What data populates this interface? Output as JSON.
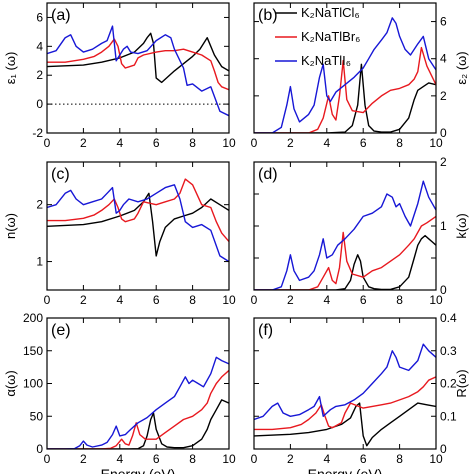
{
  "series_legend": [
    {
      "name": "K₂NaTlCl₆",
      "color": "#000000"
    },
    {
      "name": "K₂NaTlBr₆",
      "color": "#e8191f"
    },
    {
      "name": "K₂NaTlI₆",
      "color": "#1717d6"
    }
  ],
  "chart_data": [
    {
      "type": "line",
      "panel_label": "(a)",
      "ylabel": "ε₁ (ω)",
      "ylabel_side": "left",
      "xlim": [
        0,
        10
      ],
      "ylim": [
        -2,
        7
      ],
      "yticks": [
        -2,
        0,
        2,
        4,
        6
      ],
      "xticks": [
        0,
        2,
        4,
        6,
        8,
        10
      ],
      "xlabel": "",
      "zero_line": "dotted",
      "series": [
        {
          "color": "#000000",
          "x": [
            0,
            2,
            3,
            4,
            4.8,
            5.3,
            5.5,
            5.7,
            5.85,
            6,
            6.3,
            7,
            7.5,
            8,
            8.4,
            8.8,
            9.2,
            9.6,
            10
          ],
          "y": [
            2.6,
            2.7,
            2.9,
            3.2,
            3.6,
            4.2,
            4.6,
            4.9,
            4.2,
            1.8,
            1.5,
            2.3,
            2.8,
            3.3,
            3.8,
            4.6,
            3.4,
            2.6,
            2.3
          ]
        },
        {
          "color": "#e8191f",
          "x": [
            0,
            1,
            2,
            2.6,
            3,
            3.4,
            3.7,
            3.9,
            4.1,
            4.3,
            4.8,
            5,
            5.3,
            6,
            6.5,
            7,
            7.5,
            8,
            8.5,
            9,
            9.2,
            9.4,
            9.6,
            10
          ],
          "y": [
            2.9,
            2.9,
            3.1,
            3.3,
            3.6,
            4.0,
            4.5,
            4.0,
            2.8,
            2.5,
            2.7,
            3.2,
            3.4,
            3.6,
            3.7,
            3.7,
            3.8,
            3.6,
            3.4,
            3.0,
            2.3,
            1.5,
            1.2,
            1.0
          ]
        },
        {
          "color": "#1717d6",
          "x": [
            0,
            0.5,
            1,
            1.3,
            1.6,
            2,
            2.5,
            3,
            3.3,
            3.6,
            3.8,
            4,
            4.2,
            4.4,
            4.6,
            5,
            5.5,
            6,
            6.5,
            6.8,
            7,
            7.5,
            7.7,
            8,
            8.5,
            9,
            9.5,
            10
          ],
          "y": [
            3.5,
            3.7,
            4.6,
            4.8,
            4.0,
            3.6,
            3.8,
            4.2,
            4.4,
            5.4,
            3.0,
            3.4,
            3.8,
            4.0,
            3.6,
            3.5,
            3.7,
            4.4,
            4.8,
            4.6,
            3.8,
            2.5,
            1.3,
            1.4,
            0.9,
            1.2,
            -0.5,
            -0.8
          ]
        }
      ]
    },
    {
      "type": "line",
      "panel_label": "(b)",
      "ylabel": "ε₂ (ω)",
      "ylabel_side": "right",
      "xlim": [
        0,
        10
      ],
      "ylim": [
        0,
        7
      ],
      "yticks": [
        0,
        2,
        4,
        6
      ],
      "xticks": [
        0,
        2,
        4,
        6,
        8,
        10
      ],
      "xlabel": "",
      "series": [
        {
          "color": "#000000",
          "x": [
            0,
            4,
            5,
            5.4,
            5.7,
            5.9,
            6.1,
            6.3,
            6.6,
            7,
            7.5,
            8,
            8.5,
            8.8,
            9,
            9.3,
            9.6,
            10
          ],
          "y": [
            0,
            0,
            0.05,
            0.4,
            1.5,
            3.7,
            1.5,
            0.4,
            0.1,
            0.05,
            0.05,
            0.2,
            0.8,
            1.8,
            2.3,
            2.5,
            2.7,
            2.6
          ]
        },
        {
          "color": "#e8191f",
          "x": [
            0,
            3,
            3.5,
            3.8,
            4.1,
            4.3,
            4.5,
            4.7,
            4.9,
            5.1,
            5.4,
            6,
            6.5,
            7,
            7.5,
            8,
            8.5,
            8.8,
            9,
            9.2,
            9.5,
            10
          ],
          "y": [
            0,
            0,
            0.2,
            0.8,
            2.0,
            1.0,
            0.7,
            2.0,
            3.9,
            1.8,
            1.2,
            1.1,
            1.6,
            2.0,
            2.3,
            2.4,
            2.6,
            2.9,
            3.3,
            4.6,
            3.6,
            2.6
          ]
        },
        {
          "color": "#1717d6",
          "x": [
            0,
            1,
            1.5,
            1.8,
            2,
            2.2,
            2.5,
            3,
            3.3,
            3.6,
            3.8,
            4,
            4.2,
            4.5,
            5,
            5.5,
            6,
            6.3,
            6.6,
            7,
            7.3,
            7.6,
            7.8,
            8,
            8.3,
            8.6,
            9,
            9.3,
            9.6,
            10
          ],
          "y": [
            0,
            0,
            0.3,
            1.5,
            2.5,
            1.3,
            0.6,
            1.0,
            1.5,
            3.0,
            3.7,
            2.0,
            1.7,
            2.2,
            2.6,
            3.0,
            3.5,
            4.0,
            4.5,
            5.0,
            5.4,
            6.2,
            5.9,
            5.2,
            4.5,
            4.2,
            4.8,
            5.2,
            4.0,
            3.4
          ]
        }
      ]
    },
    {
      "type": "line",
      "panel_label": "(c)",
      "ylabel": "n(ω)",
      "ylabel_side": "left",
      "xlim": [
        0,
        10
      ],
      "ylim": [
        0.5,
        2.75
      ],
      "yticks": [
        1,
        2
      ],
      "xticks": [
        0,
        2,
        4,
        6,
        8,
        10
      ],
      "xlabel": "",
      "series": [
        {
          "color": "#000000",
          "x": [
            0,
            2,
            3,
            4,
            4.8,
            5.3,
            5.6,
            5.8,
            6,
            6.2,
            6.5,
            7,
            7.5,
            8,
            8.5,
            9,
            9.5,
            10
          ],
          "y": [
            1.62,
            1.65,
            1.7,
            1.8,
            1.9,
            2.05,
            2.2,
            1.7,
            1.1,
            1.35,
            1.6,
            1.75,
            1.8,
            1.85,
            1.95,
            2.1,
            2.0,
            1.9
          ]
        },
        {
          "color": "#e8191f",
          "x": [
            0,
            1,
            2,
            2.6,
            3,
            3.4,
            3.7,
            3.9,
            4.1,
            4.3,
            4.8,
            5,
            5.3,
            6,
            6.5,
            7,
            7.3,
            7.6,
            8,
            8.5,
            9,
            9.3,
            9.6,
            10
          ],
          "y": [
            1.72,
            1.72,
            1.76,
            1.82,
            1.9,
            2.0,
            2.1,
            1.95,
            1.75,
            1.7,
            1.75,
            1.85,
            2.05,
            2.0,
            2.05,
            2.1,
            2.2,
            2.45,
            2.35,
            2.0,
            1.95,
            1.7,
            1.5,
            1.35
          ]
        },
        {
          "color": "#1717d6",
          "x": [
            0,
            0.5,
            1,
            1.3,
            1.6,
            2,
            2.5,
            3,
            3.3,
            3.6,
            3.8,
            4,
            4.2,
            4.5,
            5,
            5.5,
            6,
            6.5,
            7,
            7.3,
            7.6,
            8,
            8.5,
            9,
            9.5,
            10
          ],
          "y": [
            1.95,
            2.0,
            2.2,
            2.25,
            2.1,
            2.0,
            2.05,
            2.1,
            2.2,
            2.3,
            1.85,
            1.9,
            2.0,
            2.1,
            2.05,
            2.1,
            2.2,
            2.3,
            2.35,
            2.1,
            1.7,
            1.6,
            1.65,
            1.55,
            1.1,
            1.0
          ]
        }
      ]
    },
    {
      "type": "line",
      "panel_label": "(d)",
      "ylabel": "k(ω)",
      "ylabel_side": "right",
      "xlim": [
        0,
        10
      ],
      "ylim": [
        0,
        2
      ],
      "yticks": [
        0,
        0.5,
        1,
        1.5,
        2
      ],
      "ytick_labels": [
        "0",
        "",
        "1",
        "",
        "2"
      ],
      "xticks": [
        0,
        2,
        4,
        6,
        8,
        10
      ],
      "xlabel": "",
      "series": [
        {
          "color": "#000000",
          "x": [
            0,
            4.5,
            5,
            5.3,
            5.5,
            5.7,
            5.85,
            6,
            6.3,
            6.6,
            7,
            7.5,
            8,
            8.5,
            8.8,
            9,
            9.2,
            9.4,
            9.6,
            9.8,
            10
          ],
          "y": [
            0,
            0,
            0.02,
            0.15,
            0.4,
            0.55,
            0.45,
            0.2,
            0.05,
            0.02,
            0.01,
            0.01,
            0.05,
            0.2,
            0.5,
            0.7,
            0.8,
            0.85,
            0.8,
            0.75,
            0.7
          ]
        },
        {
          "color": "#e8191f",
          "x": [
            0,
            3,
            3.5,
            3.8,
            4.1,
            4.3,
            4.5,
            4.7,
            4.9,
            5.1,
            5.4,
            6,
            6.5,
            7,
            7.5,
            8,
            8.5,
            8.8,
            9,
            9.2,
            9.5,
            10
          ],
          "y": [
            0,
            0,
            0.05,
            0.2,
            0.35,
            0.15,
            0.1,
            0.35,
            0.9,
            0.45,
            0.25,
            0.2,
            0.3,
            0.35,
            0.45,
            0.55,
            0.7,
            0.8,
            0.9,
            1.0,
            1.05,
            1.15
          ]
        },
        {
          "color": "#1717d6",
          "x": [
            0,
            1,
            1.5,
            1.8,
            2,
            2.2,
            2.5,
            3,
            3.3,
            3.6,
            3.8,
            4,
            4.3,
            4.6,
            5,
            5.5,
            6,
            6.5,
            7,
            7.3,
            7.6,
            7.8,
            8,
            8.3,
            8.6,
            9,
            9.3,
            9.6,
            10
          ],
          "y": [
            0,
            0,
            0.05,
            0.3,
            0.55,
            0.3,
            0.15,
            0.2,
            0.3,
            0.55,
            0.8,
            0.5,
            0.55,
            0.7,
            0.8,
            0.95,
            1.15,
            1.2,
            1.3,
            1.5,
            1.45,
            1.3,
            1.35,
            1.15,
            1.0,
            1.35,
            1.7,
            1.45,
            1.25
          ]
        }
      ]
    },
    {
      "type": "line",
      "panel_label": "(e)",
      "ylabel": "α(ω)",
      "ylabel_side": "left",
      "xlim": [
        0,
        10
      ],
      "ylim": [
        0,
        200
      ],
      "yticks": [
        0,
        50,
        100,
        150,
        200
      ],
      "xticks": [
        0,
        2,
        4,
        6,
        8,
        10
      ],
      "xlabel": "Energy (eV)",
      "series": [
        {
          "color": "#000000",
          "x": [
            0,
            4.5,
            5,
            5.3,
            5.5,
            5.7,
            5.85,
            6,
            6.3,
            6.6,
            7,
            7.5,
            8,
            8.5,
            8.8,
            9,
            9.3,
            9.6,
            10
          ],
          "y": [
            0,
            0,
            0.5,
            5,
            20,
            45,
            55,
            30,
            8,
            3,
            2,
            2,
            5,
            15,
            30,
            45,
            60,
            75,
            70
          ]
        },
        {
          "color": "#e8191f",
          "x": [
            0,
            3,
            3.5,
            3.8,
            4.1,
            4.3,
            4.5,
            4.7,
            4.9,
            5.1,
            5.4,
            6,
            6.5,
            7,
            7.5,
            8,
            8.5,
            8.8,
            9,
            9.3,
            9.6,
            10
          ],
          "y": [
            0,
            0,
            1,
            5,
            15,
            8,
            6,
            20,
            40,
            22,
            15,
            15,
            25,
            35,
            45,
            50,
            60,
            70,
            85,
            100,
            110,
            120
          ]
        },
        {
          "color": "#1717d6",
          "x": [
            0,
            1,
            1.5,
            1.8,
            2,
            2.2,
            2.5,
            3,
            3.3,
            3.6,
            3.8,
            4,
            4.3,
            4.6,
            5,
            5.5,
            6,
            6.5,
            7,
            7.3,
            7.6,
            7.8,
            8,
            8.3,
            8.6,
            9,
            9.3,
            9.6,
            10
          ],
          "y": [
            0,
            0,
            0.5,
            5,
            12,
            6,
            3,
            6,
            10,
            22,
            35,
            20,
            22,
            30,
            40,
            48,
            60,
            70,
            80,
            95,
            110,
            100,
            105,
            100,
            95,
            115,
            140,
            135,
            130
          ]
        }
      ]
    },
    {
      "type": "line",
      "panel_label": "(f)",
      "ylabel": "R(ω)",
      "ylabel_side": "right",
      "xlim": [
        0,
        10
      ],
      "ylim": [
        0,
        0.4
      ],
      "yticks": [
        0,
        0.1,
        0.2,
        0.3,
        0.4
      ],
      "xticks": [
        0,
        2,
        4,
        6,
        8,
        10
      ],
      "xlabel": "Energy (eV)",
      "series": [
        {
          "color": "#000000",
          "x": [
            0,
            2,
            3,
            4,
            4.8,
            5.3,
            5.6,
            5.8,
            6,
            6.2,
            6.5,
            7,
            7.5,
            8,
            8.5,
            9,
            9.5,
            10
          ],
          "y": [
            0.04,
            0.045,
            0.05,
            0.06,
            0.075,
            0.095,
            0.13,
            0.14,
            0.04,
            0.01,
            0.035,
            0.06,
            0.08,
            0.1,
            0.12,
            0.14,
            0.135,
            0.13
          ]
        },
        {
          "color": "#e8191f",
          "x": [
            0,
            1,
            2,
            2.6,
            3,
            3.4,
            3.7,
            3.9,
            4.1,
            4.3,
            4.8,
            5,
            5.3,
            6,
            6.5,
            7,
            7.5,
            8,
            8.5,
            9,
            9.3,
            9.6,
            10
          ],
          "y": [
            0.06,
            0.06,
            0.065,
            0.075,
            0.09,
            0.11,
            0.135,
            0.1,
            0.07,
            0.065,
            0.08,
            0.11,
            0.14,
            0.125,
            0.13,
            0.135,
            0.14,
            0.15,
            0.16,
            0.175,
            0.19,
            0.21,
            0.22
          ]
        },
        {
          "color": "#1717d6",
          "x": [
            0,
            0.5,
            1,
            1.3,
            1.6,
            2,
            2.5,
            3,
            3.3,
            3.6,
            3.8,
            4,
            4.2,
            4.5,
            5,
            5.5,
            6,
            6.5,
            7,
            7.3,
            7.6,
            7.8,
            8,
            8.5,
            9,
            9.3,
            9.6,
            10
          ],
          "y": [
            0.09,
            0.1,
            0.13,
            0.14,
            0.11,
            0.1,
            0.105,
            0.12,
            0.13,
            0.16,
            0.1,
            0.11,
            0.12,
            0.13,
            0.135,
            0.15,
            0.17,
            0.2,
            0.23,
            0.25,
            0.3,
            0.28,
            0.25,
            0.24,
            0.27,
            0.32,
            0.3,
            0.28
          ]
        }
      ]
    }
  ]
}
